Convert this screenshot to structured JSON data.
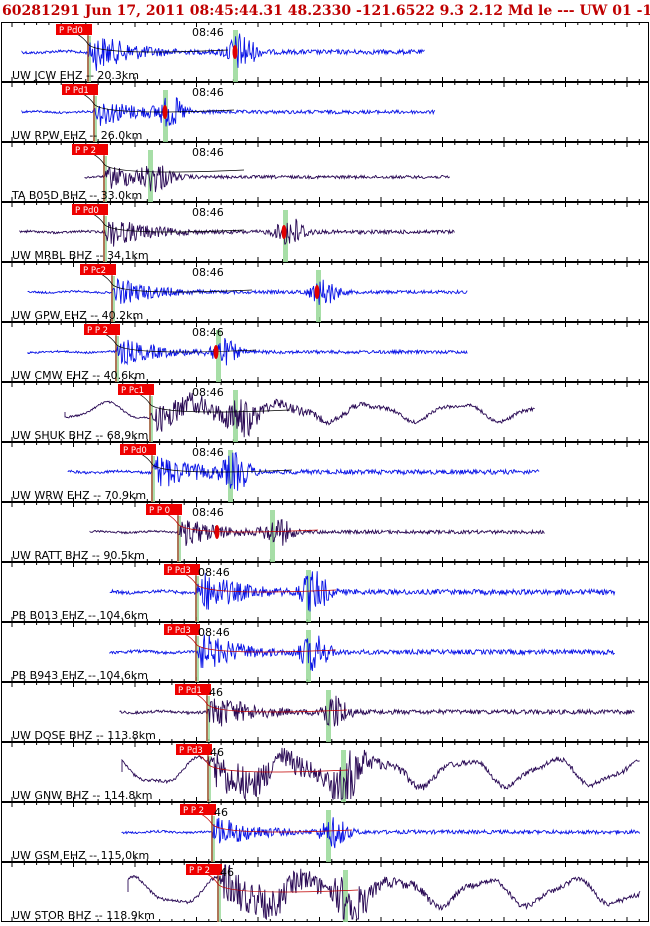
{
  "header": {
    "event_line": "60281291 Jun 17, 2011 08:45:44.31   48.2330 -121.6522  9.3 2.12 Md le --- UW 01  -1"
  },
  "colors": {
    "ehz_trace": "#0a14e6",
    "bhz_trace": "#2a0a55",
    "pick_box": "#ee0000",
    "pick_line": "#b03020",
    "s_band": "#98d898",
    "background": "#ffffff"
  },
  "chart_data": {
    "type": "seismogram",
    "time_label": "08:46",
    "traces": [
      {
        "label": "UW JCW EHZ -- 20.3km",
        "pick": "P Pd0",
        "comp": "EHZ"
      },
      {
        "label": "UW RPW EHZ -- 26.0km",
        "pick": "P Pd1",
        "comp": "EHZ"
      },
      {
        "label": "TA B05D BHZ -- 33.0km",
        "pick": "P P 2",
        "comp": "BHZ"
      },
      {
        "label": "UW MRBL BHZ -- 34.1km",
        "pick": "P Pd0",
        "comp": "BHZ"
      },
      {
        "label": "UW GPW EHZ -- 40.2km",
        "pick": "P Pc2",
        "comp": "EHZ"
      },
      {
        "label": "UW CMW EHZ -- 40.6km",
        "pick": "P P 2",
        "comp": "EHZ"
      },
      {
        "label": "UW SHUK BHZ -- 68.9km",
        "pick": "P Pc1",
        "comp": "BHZ"
      },
      {
        "label": "UW WRW EHZ -- 70.9km",
        "pick": "P Pd0",
        "comp": "EHZ"
      },
      {
        "label": "UW RATT BHZ -- 90.5km",
        "pick": "P P 0",
        "comp": "BHZ"
      },
      {
        "label": "PB B013 EHZ -- 104.6km",
        "pick": "P Pd3",
        "comp": "EHZ"
      },
      {
        "label": "PB B943 EHZ -- 104.6km",
        "pick": "P Pd3",
        "comp": "EHZ"
      },
      {
        "label": "UW DOSE BHZ -- 113.8km",
        "pick": "P Pd1",
        "comp": "BHZ"
      },
      {
        "label": "UW GNW BHZ -- 114.8km",
        "pick": "P Pd3",
        "comp": "BHZ"
      },
      {
        "label": "UW GSM EHZ -- 115.0km",
        "pick": "P P 2",
        "comp": "EHZ"
      },
      {
        "label": "UW STOR BHZ -- 118.9km",
        "pick": "P P 2",
        "comp": "BHZ"
      }
    ]
  }
}
